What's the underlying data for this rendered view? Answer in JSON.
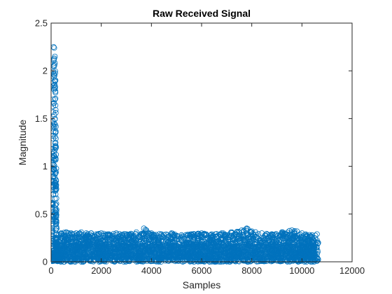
{
  "chart_data": {
    "type": "scatter",
    "title": "Raw Received Signal",
    "xlabel": "Samples",
    "ylabel": "Magnitude",
    "xlim": [
      0,
      12000
    ],
    "ylim": [
      0,
      2.5
    ],
    "xticks": [
      0,
      2000,
      4000,
      6000,
      8000,
      10000,
      12000
    ],
    "xtick_labels": [
      "0",
      "2000",
      "4000",
      "6000",
      "8000",
      "10000",
      "12000"
    ],
    "yticks": [
      0,
      0.5,
      1,
      1.5,
      2,
      2.5
    ],
    "ytick_labels": [
      "0",
      "0.5",
      "1",
      "1.5",
      "2",
      "2.5"
    ],
    "grid": false,
    "legend": null,
    "marker": "circle",
    "series": [
      {
        "color": "#0072BD",
        "x": [
          0,
          25,
          50,
          75,
          100,
          125,
          150,
          175,
          200,
          225,
          250,
          300,
          400,
          600,
          800,
          1000,
          1200,
          1400,
          1600,
          1800,
          2000,
          2300,
          2600,
          3000,
          3400,
          3700,
          3800,
          4000,
          4400,
          4800,
          5200,
          5600,
          6000,
          6400,
          6800,
          7200,
          7600,
          7800,
          8000,
          8400,
          8800,
          9200,
          9600,
          9800,
          10000,
          10400,
          10600,
          10650
        ],
        "y": [
          0.02,
          0.4,
          1.1,
          1.7,
          2.25,
          2.24,
          2.15,
          1.9,
          1.2,
          0.35,
          0.15,
          0.28,
          0.3,
          0.31,
          0.3,
          0.3,
          0.31,
          0.3,
          0.3,
          0.29,
          0.3,
          0.29,
          0.3,
          0.29,
          0.31,
          0.35,
          0.33,
          0.3,
          0.29,
          0.3,
          0.28,
          0.29,
          0.3,
          0.29,
          0.3,
          0.31,
          0.33,
          0.35,
          0.32,
          0.3,
          0.29,
          0.31,
          0.33,
          0.32,
          0.3,
          0.28,
          0.29,
          0.2
        ]
      }
    ],
    "signal_profile": {
      "burst_range": [
        0,
        260
      ],
      "burst_peak": 2.26,
      "noise_end": 10650,
      "noise_floor": 0.0,
      "noise_envelope": 0.3
    }
  }
}
